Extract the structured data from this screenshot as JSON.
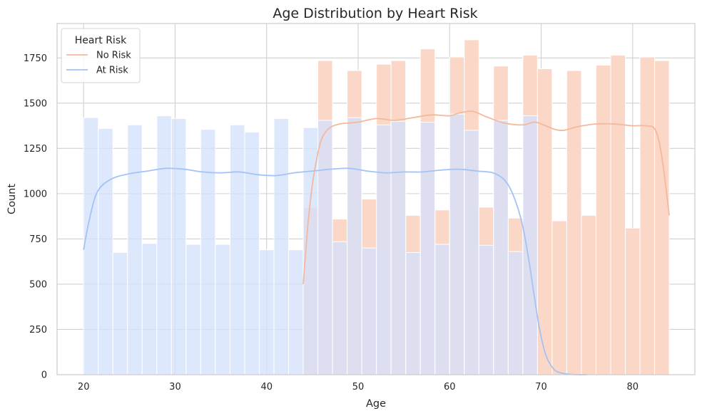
{
  "chart_data": {
    "type": "bar",
    "title": "Age Distribution by Heart Risk",
    "xlabel": "Age",
    "ylabel": "Count",
    "xlim": [
      17.1,
      86.8
    ],
    "ylim": [
      0,
      1940
    ],
    "xticks": [
      20,
      30,
      40,
      50,
      60,
      70,
      80
    ],
    "yticks": [
      0,
      250,
      500,
      750,
      1000,
      1250,
      1500,
      1750
    ],
    "grid": true,
    "legend": {
      "title": "Heart Risk",
      "placement": "top-left"
    },
    "bin_edges": [
      20,
      21.6,
      23.2,
      24.8,
      26.4,
      28,
      29.6,
      31.2,
      32.8,
      34.4,
      36,
      37.6,
      39.2,
      40.8,
      42.4,
      44,
      45.6,
      47.2,
      48.8,
      50.4,
      52,
      53.6,
      55.2,
      56.8,
      58.4,
      60,
      61.6,
      63.2,
      64.8,
      66.4,
      68,
      69.6,
      71.2,
      72.8,
      74.4,
      76,
      77.6,
      79.2,
      80.8,
      82.4,
      84
    ],
    "series": [
      {
        "name": "No Risk",
        "color": "#f4b89c",
        "fill": "#fbd7c7",
        "values": [
          0,
          0,
          0,
          0,
          0,
          0,
          0,
          0,
          0,
          0,
          0,
          0,
          0,
          0,
          0,
          925,
          1735,
          860,
          1680,
          970,
          1715,
          1735,
          880,
          1800,
          910,
          1755,
          1850,
          925,
          1705,
          865,
          1765,
          1690,
          850,
          1680,
          880,
          1710,
          1765,
          810,
          1755,
          1735
        ],
        "kde_x": [
          44,
          44.5,
          45,
          45.5,
          46,
          46.8,
          48,
          50,
          52,
          54,
          56,
          58,
          60,
          61,
          62.5,
          64,
          66,
          68,
          69.3,
          70.5,
          71.5,
          72.5,
          74,
          76,
          78,
          80,
          81.5,
          82.5,
          83.2,
          84
        ],
        "kde_y": [
          500,
          820,
          1050,
          1200,
          1300,
          1360,
          1385,
          1395,
          1415,
          1405,
          1420,
          1435,
          1430,
          1445,
          1455,
          1425,
          1390,
          1380,
          1395,
          1375,
          1355,
          1350,
          1370,
          1385,
          1385,
          1375,
          1375,
          1350,
          1200,
          880
        ]
      },
      {
        "name": "At Risk",
        "color": "#a3c3f5",
        "fill": "#d5e1fc",
        "values": [
          1420,
          1360,
          675,
          1380,
          725,
          1430,
          1415,
          720,
          1355,
          720,
          1380,
          1340,
          690,
          1415,
          690,
          1365,
          1405,
          735,
          1420,
          700,
          1380,
          1400,
          675,
          1395,
          720,
          1440,
          1350,
          715,
          1405,
          680,
          1430,
          0,
          0,
          0,
          0,
          0,
          0,
          0,
          0,
          0
        ],
        "kde_x": [
          20,
          20.6,
          21.5,
          23,
          25,
          27,
          29,
          31,
          33,
          35,
          37,
          39,
          41,
          43,
          45,
          47,
          49,
          51,
          53,
          55,
          57,
          59,
          61,
          63,
          65,
          66.5,
          67.8,
          68.6,
          69.2,
          69.8,
          70.5,
          71.3,
          72,
          73,
          74,
          75
        ],
        "kde_y": [
          690,
          850,
          1010,
          1080,
          1110,
          1125,
          1140,
          1135,
          1120,
          1115,
          1120,
          1105,
          1100,
          1115,
          1125,
          1135,
          1140,
          1125,
          1115,
          1120,
          1120,
          1130,
          1135,
          1125,
          1110,
          1040,
          860,
          650,
          450,
          260,
          110,
          35,
          12,
          3,
          0,
          0
        ]
      }
    ]
  }
}
